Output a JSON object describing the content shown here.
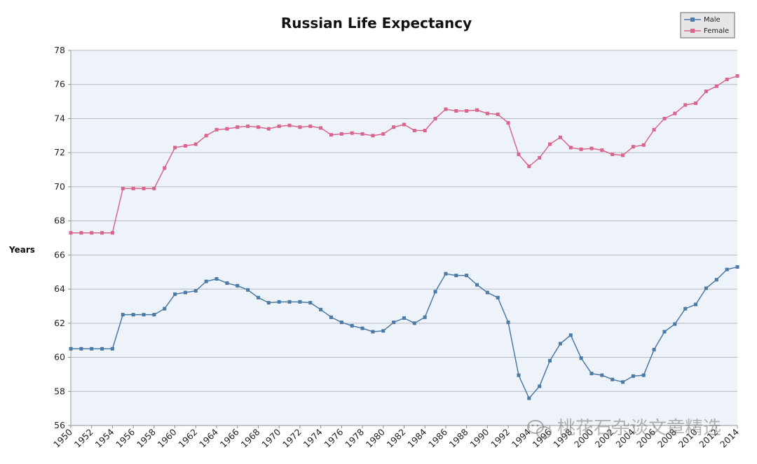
{
  "chart_data": {
    "type": "line",
    "title": "Russian Life Expectancy",
    "ylabel": "Years",
    "xlabel": "",
    "ylim": [
      56,
      78
    ],
    "xlim": [
      1950,
      2014
    ],
    "y_ticks": [
      56,
      58,
      60,
      62,
      64,
      66,
      68,
      70,
      72,
      74,
      76,
      78
    ],
    "x_tick_labels": [
      "1950",
      "1952",
      "1954",
      "1956",
      "1958",
      "1960",
      "1962",
      "1964",
      "1966",
      "1968",
      "1970",
      "1972",
      "1974",
      "1976",
      "1978",
      "1980",
      "1982",
      "1984",
      "1986",
      "1988",
      "1990",
      "1992",
      "1994",
      "1996",
      "1998",
      "2000",
      "2002",
      "2004",
      "2006",
      "2008",
      "2010",
      "2012",
      "2014"
    ],
    "grid": true,
    "legend_position": "top-right",
    "x": [
      1950,
      1951,
      1952,
      1953,
      1954,
      1955,
      1956,
      1957,
      1958,
      1959,
      1960,
      1961,
      1962,
      1963,
      1964,
      1965,
      1966,
      1967,
      1968,
      1969,
      1970,
      1971,
      1972,
      1973,
      1974,
      1975,
      1976,
      1977,
      1978,
      1979,
      1980,
      1981,
      1982,
      1983,
      1984,
      1985,
      1986,
      1987,
      1988,
      1989,
      1990,
      1991,
      1992,
      1993,
      1994,
      1995,
      1996,
      1997,
      1998,
      1999,
      2000,
      2001,
      2002,
      2003,
      2004,
      2005,
      2006,
      2007,
      2008,
      2009,
      2010,
      2011,
      2012,
      2013,
      2014
    ],
    "series": [
      {
        "name": "Male",
        "color": "#4a7aa5",
        "values": [
          60.5,
          60.5,
          60.5,
          60.5,
          60.5,
          62.5,
          62.5,
          62.5,
          62.5,
          62.85,
          63.7,
          63.8,
          63.9,
          64.45,
          64.6,
          64.35,
          64.2,
          63.95,
          63.5,
          63.2,
          63.25,
          63.25,
          63.25,
          63.2,
          62.8,
          62.35,
          62.05,
          61.85,
          61.7,
          61.5,
          61.55,
          62.05,
          62.3,
          62.0,
          62.35,
          63.85,
          64.9,
          64.8,
          64.8,
          64.25,
          63.8,
          63.5,
          62.05,
          58.95,
          57.6,
          58.3,
          59.8,
          60.8,
          61.3,
          59.95,
          59.05,
          58.95,
          58.7,
          58.55,
          58.9,
          58.95,
          60.45,
          61.5,
          61.95,
          62.85,
          63.1,
          64.05,
          64.55,
          65.15,
          65.3
        ]
      },
      {
        "name": "Female",
        "color": "#d9658f",
        "values": [
          67.3,
          67.3,
          67.3,
          67.3,
          67.3,
          69.9,
          69.9,
          69.9,
          69.9,
          71.1,
          72.3,
          72.4,
          72.5,
          73.0,
          73.35,
          73.4,
          73.5,
          73.55,
          73.5,
          73.4,
          73.55,
          73.6,
          73.5,
          73.55,
          73.45,
          73.05,
          73.1,
          73.15,
          73.1,
          73.0,
          73.1,
          73.5,
          73.65,
          73.3,
          73.3,
          74.0,
          74.55,
          74.45,
          74.45,
          74.5,
          74.3,
          74.25,
          73.75,
          71.9,
          71.2,
          71.7,
          72.5,
          72.9,
          72.3,
          72.2,
          72.25,
          72.15,
          71.9,
          71.85,
          72.35,
          72.45,
          73.35,
          74.0,
          74.3,
          74.8,
          74.9,
          75.6,
          75.9,
          76.3,
          76.5
        ]
      }
    ]
  },
  "watermark": {
    "text": "桃花石杂谈文章精选",
    "icon": "wechat-icon"
  }
}
